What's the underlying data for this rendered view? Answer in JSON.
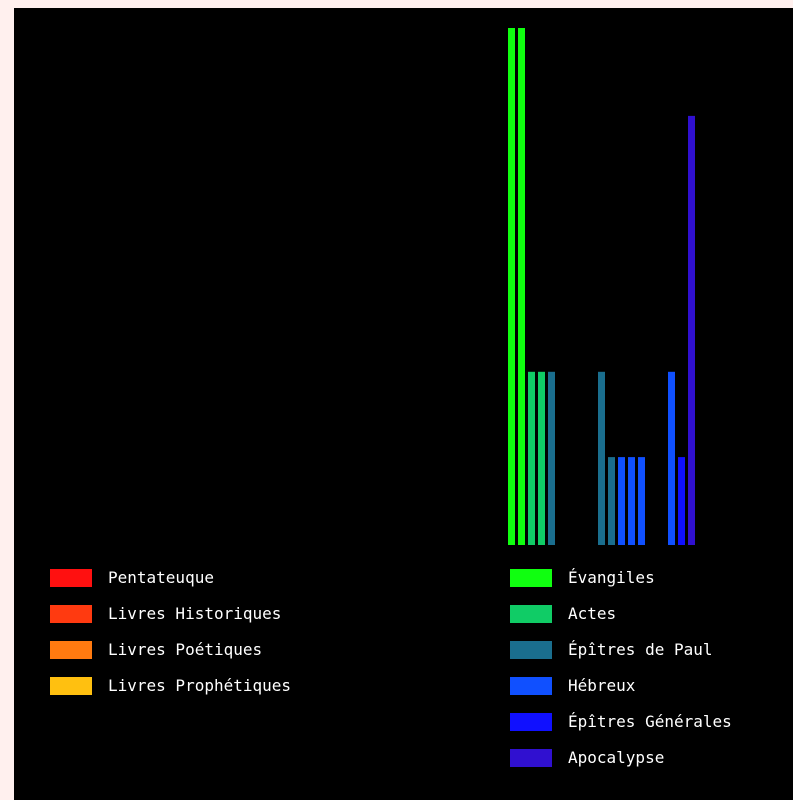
{
  "chart_data": {
    "type": "bar",
    "title": "",
    "xlabel": "",
    "ylabel": "",
    "grid": false,
    "legend_placement": "bottom",
    "ylim": [
      0,
      100
    ],
    "legend": [
      {
        "label": "Pentateuque",
        "color": "#ff1010"
      },
      {
        "label": "Livres Historiques",
        "color": "#ff3a10"
      },
      {
        "label": "Livres Poétiques",
        "color": "#ff7a10"
      },
      {
        "label": "Livres Prophétiques",
        "color": "#ffc010"
      },
      {
        "label": "Évangiles",
        "color": "#10ff10"
      },
      {
        "label": "Actes",
        "color": "#10cc66"
      },
      {
        "label": "Épîtres de Paul",
        "color": "#1a6e8e"
      },
      {
        "label": "Hébreux",
        "color": "#1050ff"
      },
      {
        "label": "Épîtres Générales",
        "color": "#1010ff"
      },
      {
        "label": "Apocalypse",
        "color": "#3010d0"
      }
    ],
    "series": [
      {
        "group": "Évangiles",
        "values": [
          100,
          100
        ]
      },
      {
        "group": "Actes",
        "values": [
          33.5,
          33.5
        ]
      },
      {
        "group": "Épîtres de Paul",
        "values": [
          33.5,
          0,
          0,
          0,
          0,
          33.5,
          17
        ]
      },
      {
        "group": "Hébreux",
        "values": [
          17,
          17,
          17,
          0,
          0,
          33.5
        ]
      },
      {
        "group": "Épîtres Générales",
        "values": [
          17
        ]
      },
      {
        "group": "Apocalypse",
        "values": [
          83
        ]
      }
    ]
  }
}
